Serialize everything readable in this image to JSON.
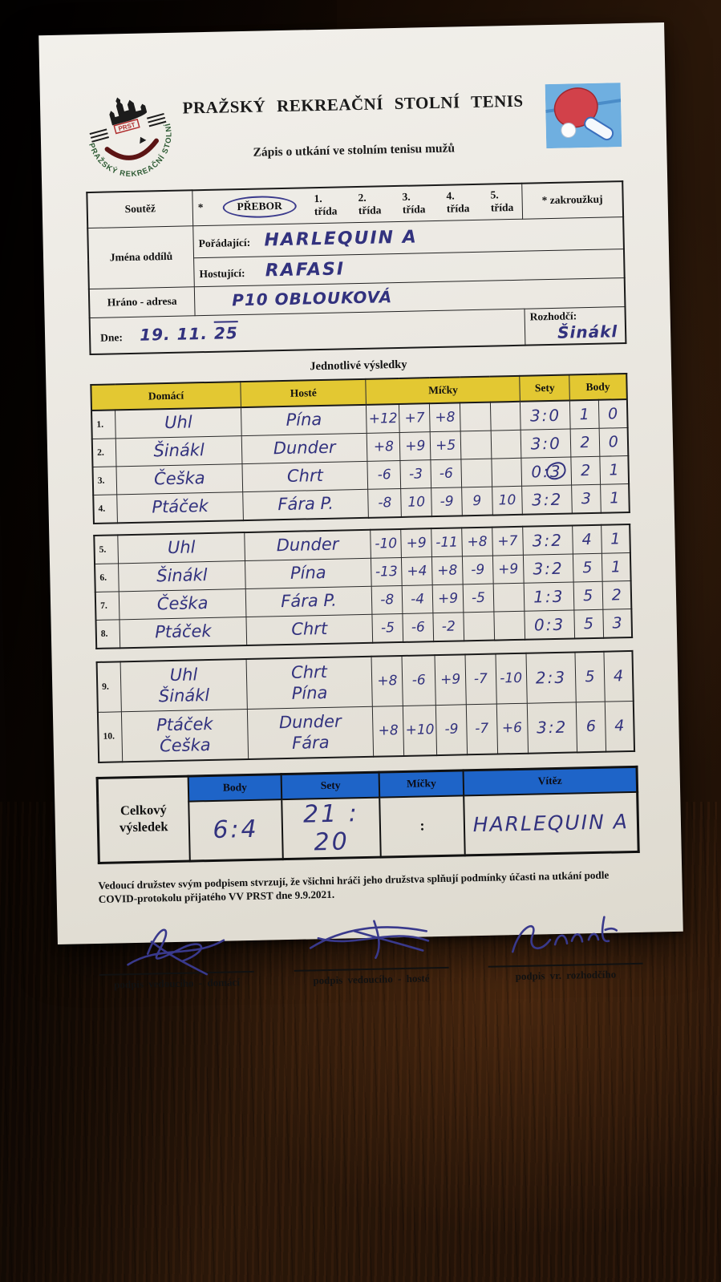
{
  "header": {
    "title": "PRAŽSKÝ REKREAČNÍ STOLNÍ TENIS",
    "subtitle": "Zápis o utkání ve stolním tenisu mužů",
    "logo": {
      "acronym": "PRST",
      "ring_text": "PRAŽSKÝ REKREAČNÍ STOLNÍ TENIS"
    }
  },
  "info": {
    "soutez_label": "Soutěž",
    "soutez_asterisk": "*",
    "soutez_selected": "PŘEBOR",
    "soutez_options": [
      "1. třída",
      "2. třída",
      "3. třída",
      "4. třída",
      "5. třída"
    ],
    "zakrouzkuj_note": "* zakroužkuj",
    "jmena_oddilu_label": "Jména oddílů",
    "poradajici_label": "Pořádající:",
    "poradajici_value": "HARLEQUIN A",
    "hostujici_label": "Hostující:",
    "hostujici_value": "RAFASI",
    "hrano_label": "Hráno - adresa",
    "hrano_value": "P10 OBLOUKOVÁ",
    "dne_label": "Dne:",
    "dne_value_main": "19. 11.",
    "dne_value_overline": "25",
    "rozhodci_label": "Rozhodčí:",
    "rozhodci_value": "Šinákl"
  },
  "results": {
    "section_title": "Jednotlivé výsledky",
    "columns": {
      "domaci": "Domácí",
      "hoste": "Hosté",
      "micky": "Míčky",
      "sety": "Sety",
      "body": "Body"
    },
    "groups": [
      {
        "rows": [
          {
            "num": "1.",
            "domaci": "Uhl",
            "hoste": "Pína",
            "micky": [
              "+12",
              "+7",
              "+8",
              "",
              ""
            ],
            "sety": "3:0",
            "body": [
              "1",
              "0"
            ],
            "scribble": false
          },
          {
            "num": "2.",
            "domaci": "Šinákl",
            "hoste": "Dunder",
            "micky": [
              "+8",
              "+9",
              "+5",
              "",
              ""
            ],
            "sety": "3:0",
            "body": [
              "2",
              "0"
            ],
            "scribble": false
          },
          {
            "num": "3.",
            "domaci": "Češka",
            "hoste": "Chrt",
            "micky": [
              "-6",
              "-3",
              "-6",
              "",
              ""
            ],
            "sety": "0:3",
            "body": [
              "2",
              "1"
            ],
            "scribble": true
          },
          {
            "num": "4.",
            "domaci": "Ptáček",
            "hoste": "Fára P.",
            "micky": [
              "-8",
              "10",
              "-9",
              "9",
              "10"
            ],
            "sety": "3:2",
            "body": [
              "3",
              "1"
            ],
            "scribble": false
          }
        ]
      },
      {
        "rows": [
          {
            "num": "5.",
            "domaci": "Uhl",
            "hoste": "Dunder",
            "micky": [
              "-10",
              "+9",
              "-11",
              "+8",
              "+7"
            ],
            "sety": "3:2",
            "body": [
              "4",
              "1"
            ],
            "scribble": false
          },
          {
            "num": "6.",
            "domaci": "Šinákl",
            "hoste": "Pína",
            "micky": [
              "-13",
              "+4",
              "+8",
              "-9",
              "+9"
            ],
            "sety": "3:2",
            "body": [
              "5",
              "1"
            ],
            "scribble": false
          },
          {
            "num": "7.",
            "domaci": "Češka",
            "hoste": "Fára P.",
            "micky": [
              "-8",
              "-4",
              "+9",
              "-5",
              ""
            ],
            "sety": "1:3",
            "body": [
              "5",
              "2"
            ],
            "scribble": false
          },
          {
            "num": "8.",
            "domaci": "Ptáček",
            "hoste": "Chrt",
            "micky": [
              "-5",
              "-6",
              "-2",
              "",
              ""
            ],
            "sety": "0:3",
            "body": [
              "5",
              "3"
            ],
            "scribble": false
          }
        ]
      },
      {
        "rows": [
          {
            "num": "9.",
            "domaci": "Uhl\nŠinákl",
            "hoste": "Chrt\nPína",
            "micky": [
              "+8",
              "-6",
              "+9",
              "-7",
              "-10"
            ],
            "sety": "2:3",
            "body": [
              "5",
              "4"
            ],
            "scribble": false
          },
          {
            "num": "10.",
            "domaci": "Ptáček\nČeška",
            "hoste": "Dunder\nFára",
            "micky": [
              "+8",
              "+10",
              "-9",
              "-7",
              "+6"
            ],
            "sety": "3:2",
            "body": [
              "6",
              "4"
            ],
            "scribble": false
          }
        ]
      }
    ]
  },
  "summary": {
    "label": "Celkový\nvýsledek",
    "columns": [
      "Body",
      "Sety",
      "Míčky",
      "Vítěz"
    ],
    "body_value": "6:4",
    "sety_value": "21 : 20",
    "micky_value": ":",
    "vitez_value": "HARLEQUIN A"
  },
  "footer": {
    "covid_text": "Vedoucí družstev svým podpisem stvrzují, že všichni hráči jeho družstva splňují podmínky účasti na utkání podle COVID-protokolu přijatého VV PRST dne 9.9.2021.",
    "signatures": [
      {
        "label": "podpis vedoucího - domácí"
      },
      {
        "label": "podpis vedoucího - hosté"
      },
      {
        "label": "podpis vr. rozhodčího"
      }
    ]
  },
  "colors": {
    "yellow_header": "#e3c832",
    "blue_header": "#1e64c8",
    "ink_blue": "#32327e",
    "paper": "#eae7e0"
  }
}
